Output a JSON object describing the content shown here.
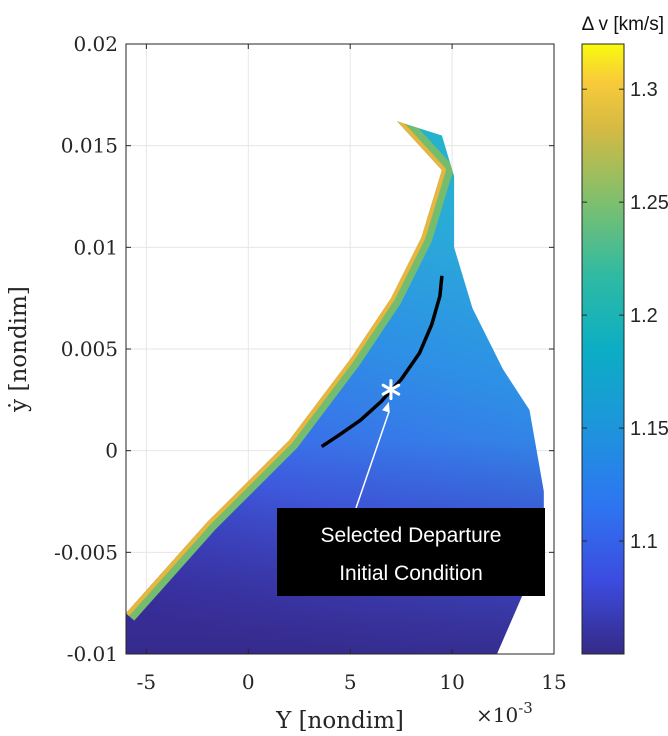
{
  "chart_data": {
    "type": "heatmap",
    "xlabel": "Y [nondim]",
    "x_exponent_label": "×10",
    "x_exponent_power": "-3",
    "ylabel": "ẏ [nondim]",
    "xlim": [
      -6,
      15
    ],
    "ylim": [
      -0.01,
      0.02
    ],
    "x_ticks": [
      -5,
      0,
      5,
      10,
      15
    ],
    "x_tick_labels": [
      "-5",
      "0",
      "5",
      "10",
      "15"
    ],
    "y_ticks": [
      -0.01,
      -0.005,
      0,
      0.005,
      0.01,
      0.015,
      0.02
    ],
    "y_tick_labels": [
      "-0.01",
      "-0.005",
      "0",
      "0.005",
      "0.01",
      "0.015",
      "0.02"
    ],
    "grid": true,
    "colorbar": {
      "title": "Δ v [km/s]",
      "range": [
        1.05,
        1.32
      ],
      "ticks": [
        1.1,
        1.15,
        1.2,
        1.25,
        1.3
      ],
      "tick_labels": [
        "1.1",
        "1.15",
        "1.2",
        "1.25",
        "1.3"
      ],
      "colormap": "parula"
    },
    "region_boundary": {
      "upper_left_edge": [
        [
          -6,
          -0.008
        ],
        [
          -2,
          -0.0035
        ],
        [
          2,
          0.0005
        ],
        [
          5,
          0.0045
        ],
        [
          7,
          0.0075
        ],
        [
          8.5,
          0.0105
        ],
        [
          9.5,
          0.0138
        ],
        [
          7.3,
          0.0162
        ]
      ],
      "outer_right_edge": [
        [
          7.3,
          0.0162
        ],
        [
          9.5,
          0.0155
        ],
        [
          10.1,
          0.0135
        ],
        [
          10.1,
          0.01
        ],
        [
          11,
          0.007
        ],
        [
          12.5,
          0.004
        ],
        [
          13.8,
          0.002
        ],
        [
          14.5,
          -0.002
        ],
        [
          14.5,
          -0.004
        ],
        [
          13.5,
          -0.007
        ],
        [
          12.2,
          -0.01
        ]
      ]
    },
    "dv_samples": [
      {
        "y": 7.8,
        "ydot": 0.015,
        "dv": 1.17
      },
      {
        "y": 8.5,
        "ydot": 0.007,
        "dv": 1.15
      },
      {
        "y": 12.0,
        "ydot": 0.003,
        "dv": 1.14
      },
      {
        "y": 5.0,
        "ydot": 0.001,
        "dv": 1.12
      },
      {
        "y": 2.0,
        "ydot": -0.004,
        "dv": 1.1
      },
      {
        "y": 7.0,
        "ydot": -0.009,
        "dv": 1.06
      },
      {
        "y": -5.5,
        "ydot": -0.0085,
        "dv": 1.13
      },
      {
        "y": -6.0,
        "ydot": -0.0079,
        "dv": 1.27
      }
    ],
    "family_curve": [
      [
        3.6,
        0.0002
      ],
      [
        4.5,
        0.0008
      ],
      [
        5.5,
        0.0015
      ],
      [
        6.5,
        0.0024
      ],
      [
        7.5,
        0.0035
      ],
      [
        8.4,
        0.0048
      ],
      [
        9.0,
        0.0062
      ],
      [
        9.4,
        0.0076
      ],
      [
        9.5,
        0.0086
      ]
    ],
    "selected_point": {
      "y": 7.0,
      "ydot": 0.003,
      "marker": "*"
    },
    "annotation": {
      "line1": "Selected Departure",
      "line2": "Initial Condition",
      "arrow_target": {
        "y": 6.9,
        "ydot": 0.0024
      }
    }
  }
}
